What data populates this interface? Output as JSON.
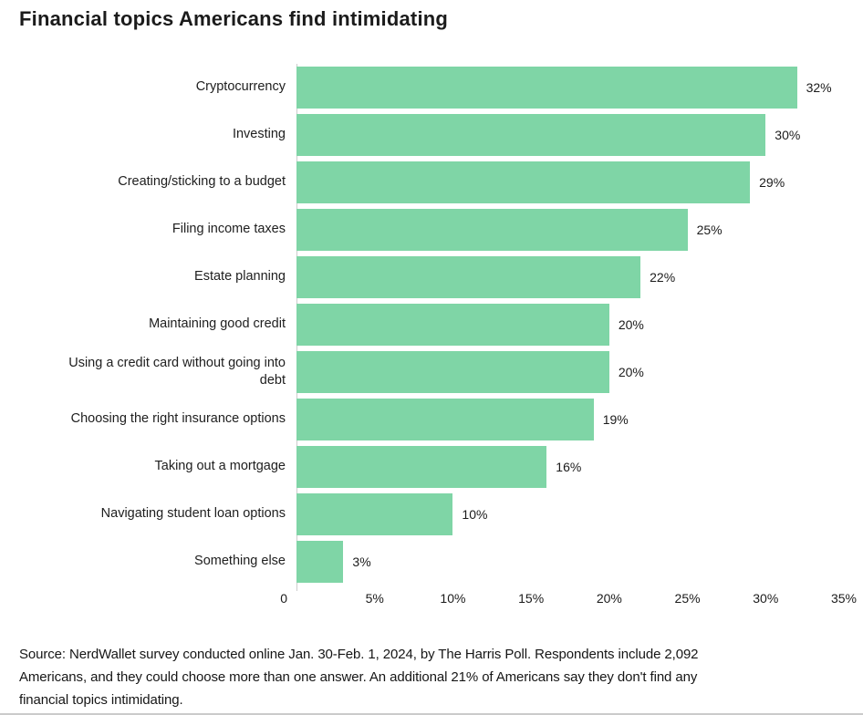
{
  "title": "Financial topics Americans find intimidating",
  "chart_data": {
    "type": "bar",
    "orientation": "horizontal",
    "title": "Financial topics Americans find intimidating",
    "categories": [
      "Cryptocurrency",
      "Investing",
      "Creating/sticking to a budget",
      "Filing income taxes",
      "Estate planning",
      "Maintaining good credit",
      "Using a credit card without going into debt",
      "Choosing the right insurance options",
      "Taking out a mortgage",
      "Navigating student loan options",
      "Something else"
    ],
    "values": [
      32,
      30,
      29,
      25,
      22,
      20,
      20,
      19,
      16,
      10,
      3
    ],
    "value_labels": [
      "32%",
      "30%",
      "29%",
      "25%",
      "22%",
      "20%",
      "20%",
      "19%",
      "16%",
      "10%",
      "3%"
    ],
    "xlabel": "",
    "ylabel": "",
    "xlim": [
      0,
      35
    ],
    "grid": false,
    "legend": "none",
    "x_ticks": [
      {
        "value": 0,
        "label": "0"
      },
      {
        "value": 5,
        "label": "5%"
      },
      {
        "value": 10,
        "label": "10%"
      },
      {
        "value": 15,
        "label": "15%"
      },
      {
        "value": 20,
        "label": "20%"
      },
      {
        "value": 25,
        "label": "25%"
      },
      {
        "value": 30,
        "label": "30%"
      },
      {
        "value": 35,
        "label": "35%"
      }
    ],
    "bar_color": "#7FD5A6",
    "axis_line_color": "#CCCCCC"
  },
  "source": {
    "lines": [
      "Source: NerdWallet survey conducted online Jan. 30-Feb. 1, 2024, by The Harris Poll. Respondents include 2,092",
      "Americans, and they could choose more than one answer. An additional 21% of Americans say they don't find any",
      "financial topics intimidating."
    ]
  }
}
